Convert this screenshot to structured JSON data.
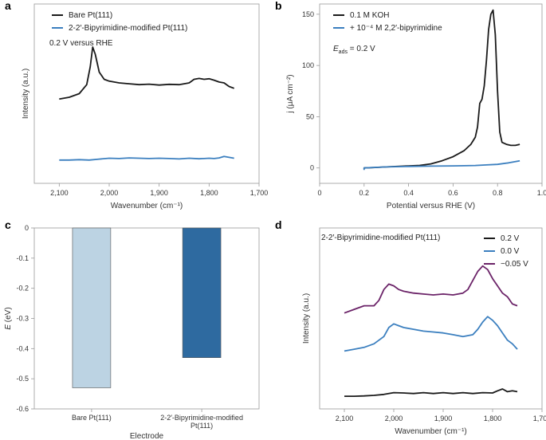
{
  "chart_data": [
    {
      "panel": "a",
      "type": "line",
      "ylabel": "Intensity (a.u.)",
      "xlabel": "Wavenumber (cm⁻¹)",
      "xlim": [
        2150,
        1700
      ],
      "ylim": [
        0,
        1
      ],
      "xticks": [
        2100,
        2000,
        1900,
        1800,
        1700
      ],
      "xtick_labels": [
        "2,100",
        "2,000",
        "1,900",
        "1,800",
        "1,700"
      ],
      "annotation": "0.2 V versus RHE",
      "series": [
        {
          "name": "Bare Pt(111)",
          "color": "#1a1a1a",
          "x": [
            2100,
            2080,
            2060,
            2045,
            2038,
            2033,
            2028,
            2020,
            2010,
            2000,
            1980,
            1960,
            1940,
            1920,
            1900,
            1880,
            1860,
            1840,
            1830,
            1820,
            1810,
            1800,
            1790,
            1780,
            1770,
            1760,
            1750
          ],
          "y": [
            0.47,
            0.48,
            0.5,
            0.55,
            0.65,
            0.76,
            0.72,
            0.62,
            0.58,
            0.57,
            0.56,
            0.555,
            0.55,
            0.553,
            0.548,
            0.552,
            0.55,
            0.56,
            0.58,
            0.585,
            0.58,
            0.583,
            0.575,
            0.565,
            0.56,
            0.54,
            0.53
          ]
        },
        {
          "name": "2-2′-Bipyrimidine-modified Pt(111)",
          "color": "#3b7fbf",
          "x": [
            2100,
            2080,
            2060,
            2040,
            2020,
            2000,
            1980,
            1960,
            1940,
            1920,
            1900,
            1880,
            1860,
            1840,
            1820,
            1800,
            1790,
            1780,
            1770,
            1760,
            1750
          ],
          "y": [
            0.13,
            0.13,
            0.132,
            0.13,
            0.135,
            0.14,
            0.138,
            0.142,
            0.14,
            0.138,
            0.14,
            0.138,
            0.136,
            0.14,
            0.137,
            0.14,
            0.138,
            0.142,
            0.15,
            0.145,
            0.14
          ]
        }
      ]
    },
    {
      "panel": "b",
      "type": "line",
      "ylabel": "j (μA cm⁻²)",
      "xlabel": "Potential versus RHE (V)",
      "xlim": [
        0.0,
        1.0
      ],
      "ylim": [
        -15,
        160
      ],
      "xticks": [
        0.0,
        0.2,
        0.4,
        0.6,
        0.8,
        1.0
      ],
      "xtick_labels": [
        "0",
        "0.2",
        "0.4",
        "0.6",
        "0.8",
        "1.0"
      ],
      "yticks": [
        0,
        50,
        100,
        150
      ],
      "ytick_labels": [
        "0",
        "50",
        "100",
        "150"
      ],
      "annotation": "E",
      "annotation_sub": "ads",
      "annotation_rest": " = 0.2 V",
      "series": [
        {
          "name": "0.1 M KOH",
          "color": "#1a1a1a",
          "x": [
            0.2,
            0.2,
            0.25,
            0.3,
            0.4,
            0.45,
            0.5,
            0.55,
            0.6,
            0.65,
            0.68,
            0.7,
            0.71,
            0.72,
            0.73,
            0.74,
            0.75,
            0.76,
            0.77,
            0.78,
            0.79,
            0.8,
            0.81,
            0.82,
            0.84,
            0.86,
            0.88,
            0.9
          ],
          "y": [
            -1,
            0,
            0.5,
            1,
            2,
            2.5,
            4,
            7,
            11,
            17,
            23,
            30,
            40,
            63,
            67,
            80,
            105,
            135,
            150,
            154,
            130,
            75,
            35,
            25,
            23,
            22,
            22,
            23
          ]
        },
        {
          "name": "+ 10⁻⁴ M 2,2′-bipyrimidine",
          "color": "#3b7fbf",
          "x": [
            0.2,
            0.2,
            0.3,
            0.4,
            0.5,
            0.6,
            0.7,
            0.75,
            0.8,
            0.85,
            0.9
          ],
          "y": [
            -2,
            0,
            1,
            1.5,
            1.8,
            2.0,
            2.4,
            3,
            3.5,
            5,
            7
          ]
        }
      ]
    },
    {
      "panel": "c",
      "type": "bar",
      "ylabel": "E (eV)",
      "xlabel": "Electrode",
      "ylim": [
        -0.6,
        0
      ],
      "yticks": [
        0,
        -0.1,
        -0.2,
        -0.3,
        -0.4,
        -0.5,
        -0.6
      ],
      "ytick_labels": [
        "0",
        "-0.1",
        "-0.2",
        "-0.3",
        "-0.4",
        "-0.5",
        "-0.6"
      ],
      "categories": [
        "Bare Pt(111)",
        "2-2′-Bipyrimidine-modified Pt(111)"
      ],
      "category_lines": [
        [
          "Bare Pt(111)"
        ],
        [
          "2-2′-Bipyrimidine-modified",
          "Pt(111)"
        ]
      ],
      "values": [
        -0.53,
        -0.43
      ],
      "colors": [
        "#bcd3e3",
        "#2e6aa0"
      ]
    },
    {
      "panel": "d",
      "type": "line",
      "ylabel": "Intensity (a.u.)",
      "xlabel": "Wavenumber (cm⁻¹)",
      "xlim": [
        2150,
        1700
      ],
      "ylim": [
        0,
        1
      ],
      "xticks": [
        2100,
        2000,
        1900,
        1800,
        1700
      ],
      "xtick_labels": [
        "2,100",
        "2,000",
        "1,900",
        "1,800",
        "1,700"
      ],
      "annotation": "2-2′-Bipyrimidine-modified Pt(111)",
      "series": [
        {
          "name": "0.2 V",
          "color": "#1a1a1a",
          "x": [
            2100,
            2080,
            2060,
            2040,
            2020,
            2000,
            1980,
            1960,
            1940,
            1920,
            1900,
            1880,
            1860,
            1840,
            1820,
            1800,
            1790,
            1780,
            1770,
            1760,
            1750
          ],
          "y": [
            0.07,
            0.07,
            0.072,
            0.075,
            0.08,
            0.09,
            0.088,
            0.085,
            0.09,
            0.085,
            0.09,
            0.085,
            0.09,
            0.085,
            0.09,
            0.088,
            0.1,
            0.11,
            0.095,
            0.1,
            0.095
          ]
        },
        {
          "name": "0.0 V",
          "color": "#3b7fbf",
          "x": [
            2100,
            2080,
            2060,
            2040,
            2020,
            2010,
            2000,
            1990,
            1980,
            1960,
            1940,
            1920,
            1900,
            1880,
            1860,
            1840,
            1830,
            1820,
            1810,
            1800,
            1790,
            1780,
            1770,
            1760,
            1750
          ],
          "y": [
            0.32,
            0.33,
            0.34,
            0.36,
            0.4,
            0.45,
            0.47,
            0.46,
            0.45,
            0.44,
            0.43,
            0.425,
            0.42,
            0.41,
            0.4,
            0.41,
            0.44,
            0.48,
            0.51,
            0.49,
            0.46,
            0.42,
            0.38,
            0.36,
            0.33
          ]
        },
        {
          "name": "−0.05 V",
          "color": "#6b2368",
          "x": [
            2100,
            2080,
            2060,
            2040,
            2030,
            2020,
            2010,
            2000,
            1990,
            1980,
            1960,
            1940,
            1920,
            1900,
            1880,
            1860,
            1850,
            1840,
            1830,
            1820,
            1810,
            1800,
            1790,
            1780,
            1770,
            1760,
            1750
          ],
          "y": [
            0.53,
            0.55,
            0.57,
            0.57,
            0.6,
            0.66,
            0.69,
            0.68,
            0.66,
            0.65,
            0.64,
            0.635,
            0.63,
            0.635,
            0.63,
            0.64,
            0.66,
            0.71,
            0.76,
            0.79,
            0.77,
            0.72,
            0.68,
            0.64,
            0.62,
            0.58,
            0.57
          ]
        }
      ]
    }
  ]
}
